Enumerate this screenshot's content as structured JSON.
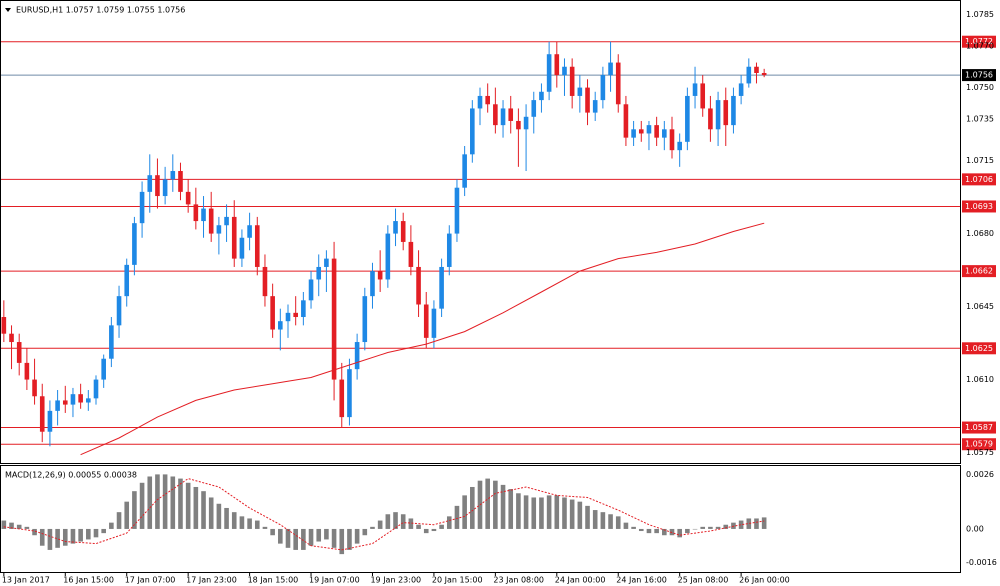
{
  "chart_data": [
    {
      "type": "candlestick",
      "header": "EURUSD,H1  1.0757 1.0759 1.0755 1.0756",
      "categories": [
        "13 Jan 2017",
        null,
        null,
        null,
        null,
        null,
        null,
        null,
        "16 Jan 15:00",
        null,
        null,
        null,
        null,
        null,
        null,
        null,
        "17 Jan 07:00",
        null,
        null,
        null,
        null,
        null,
        null,
        null,
        "17 Jan 23:00",
        null,
        null,
        null,
        null,
        null,
        null,
        null,
        "18 Jan 15:00",
        null,
        null,
        null,
        null,
        null,
        null,
        null,
        "19 Jan 07:00",
        null,
        null,
        null,
        null,
        null,
        null,
        null,
        "19 Jan 23:00",
        null,
        null,
        null,
        null,
        null,
        null,
        null,
        "20 Jan 15:00",
        null,
        null,
        null,
        null,
        null,
        null,
        null,
        "23 Jan 08:00",
        null,
        null,
        null,
        null,
        null,
        null,
        null,
        "24 Jan 00:00",
        null,
        null,
        null,
        null,
        null,
        null,
        null,
        "24 Jan 16:00",
        null,
        null,
        null,
        null,
        null,
        null,
        null,
        "25 Jan 08:00",
        null,
        null,
        null,
        null,
        null,
        null,
        null,
        "26 Jan 00:00",
        null,
        null,
        null
      ],
      "open": [
        1.064,
        1.0632,
        1.0628,
        1.0618,
        1.061,
        1.0602,
        1.0585,
        1.0595,
        1.06,
        1.0598,
        1.0603,
        1.0599,
        1.0601,
        1.061,
        1.062,
        1.0636,
        1.065,
        1.0665,
        1.0685,
        1.07,
        1.0708,
        1.0698,
        1.0706,
        1.071,
        1.07,
        1.0694,
        1.0686,
        1.0692,
        1.068,
        1.0684,
        1.0688,
        1.0668,
        1.0678,
        1.0684,
        1.0664,
        1.065,
        1.0634,
        1.0638,
        1.0642,
        1.064,
        1.0648,
        1.0658,
        1.0664,
        1.0668,
        1.061,
        1.0592,
        1.0615,
        1.0628,
        1.065,
        1.0662,
        1.0658,
        1.068,
        1.0686,
        1.0676,
        1.0664,
        1.0646,
        1.063,
        1.0644,
        1.0664,
        1.068,
        1.0702,
        1.0718,
        1.074,
        1.0746,
        1.0742,
        1.0732,
        1.074,
        1.0734,
        1.073,
        1.0736,
        1.0744,
        1.0748,
        1.0766,
        1.0756,
        1.076,
        1.0746,
        1.075,
        1.0738,
        1.0744,
        1.0756,
        1.0762,
        1.0742,
        1.0726,
        1.073,
        1.0728,
        1.0732,
        1.0726,
        1.073,
        1.072,
        1.0724,
        1.0746,
        1.0752,
        1.074,
        1.073,
        1.0744,
        1.0732,
        1.0746,
        1.0752,
        1.076,
        1.0757
      ],
      "high": [
        1.0648,
        1.0636,
        1.0632,
        1.0625,
        1.062,
        1.0608,
        1.06,
        1.0605,
        1.0607,
        1.0606,
        1.0608,
        1.0605,
        1.0612,
        1.0622,
        1.064,
        1.0655,
        1.0668,
        1.0688,
        1.0705,
        1.0718,
        1.0716,
        1.0712,
        1.0718,
        1.0714,
        1.0706,
        1.0702,
        1.0698,
        1.07,
        1.0688,
        1.0694,
        1.0696,
        1.0682,
        1.069,
        1.0688,
        1.067,
        1.0656,
        1.0644,
        1.0646,
        1.065,
        1.0652,
        1.0662,
        1.067,
        1.0672,
        1.0676,
        1.0618,
        1.062,
        1.0632,
        1.0654,
        1.0666,
        1.0672,
        1.0684,
        1.0692,
        1.069,
        1.0684,
        1.0672,
        1.0652,
        1.0648,
        1.0668,
        1.0684,
        1.0706,
        1.0722,
        1.0744,
        1.075,
        1.0752,
        1.075,
        1.0744,
        1.0746,
        1.074,
        1.0742,
        1.0748,
        1.0752,
        1.0772,
        1.0772,
        1.0764,
        1.0764,
        1.0756,
        1.0754,
        1.0748,
        1.076,
        1.0772,
        1.0766,
        1.0746,
        1.0734,
        1.0734,
        1.0734,
        1.0736,
        1.0734,
        1.0736,
        1.0728,
        1.075,
        1.076,
        1.0756,
        1.0746,
        1.0748,
        1.075,
        1.075,
        1.0756,
        1.0764,
        1.0762,
        1.0759
      ],
      "low": [
        1.0628,
        1.0615,
        1.0612,
        1.0605,
        1.0598,
        1.058,
        1.0578,
        1.0588,
        1.0594,
        1.0592,
        1.0596,
        1.0595,
        1.0598,
        1.0606,
        1.0616,
        1.063,
        1.0645,
        1.066,
        1.0678,
        1.069,
        1.0692,
        1.0694,
        1.07,
        1.0696,
        1.069,
        1.0682,
        1.0678,
        1.0676,
        1.067,
        1.0676,
        1.0664,
        1.0664,
        1.0672,
        1.066,
        1.0645,
        1.063,
        1.0624,
        1.063,
        1.0636,
        1.0636,
        1.0644,
        1.065,
        1.0652,
        1.06,
        1.0587,
        1.0588,
        1.061,
        1.0624,
        1.0644,
        1.0652,
        1.0654,
        1.0674,
        1.0672,
        1.066,
        1.064,
        1.0625,
        1.0625,
        1.064,
        1.066,
        1.0676,
        1.0698,
        1.0714,
        1.0732,
        1.0738,
        1.0728,
        1.0726,
        1.0728,
        1.0712,
        1.071,
        1.0728,
        1.0738,
        1.0744,
        1.075,
        1.0746,
        1.074,
        1.0738,
        1.0732,
        1.0734,
        1.074,
        1.0748,
        1.0738,
        1.0722,
        1.0722,
        1.0724,
        1.072,
        1.0722,
        1.072,
        1.0716,
        1.0712,
        1.072,
        1.074,
        1.0736,
        1.0724,
        1.0722,
        1.0722,
        1.0728,
        1.0742,
        1.075,
        1.0752,
        1.0755
      ],
      "close": [
        1.0632,
        1.0628,
        1.0618,
        1.061,
        1.0602,
        1.0585,
        1.0595,
        1.06,
        1.0598,
        1.0603,
        1.0599,
        1.0601,
        1.061,
        1.062,
        1.0636,
        1.065,
        1.0665,
        1.0685,
        1.07,
        1.0708,
        1.0698,
        1.0706,
        1.071,
        1.07,
        1.0694,
        1.0686,
        1.0692,
        1.068,
        1.0684,
        1.0688,
        1.0668,
        1.0678,
        1.0684,
        1.0664,
        1.065,
        1.0634,
        1.0638,
        1.0642,
        1.064,
        1.0648,
        1.0658,
        1.0664,
        1.0668,
        1.061,
        1.0592,
        1.0615,
        1.0628,
        1.065,
        1.0662,
        1.0658,
        1.068,
        1.0686,
        1.0676,
        1.0664,
        1.0646,
        1.063,
        1.0644,
        1.0664,
        1.068,
        1.0702,
        1.0718,
        1.074,
        1.0746,
        1.0742,
        1.0732,
        1.074,
        1.0734,
        1.073,
        1.0736,
        1.0744,
        1.0748,
        1.0766,
        1.0756,
        1.076,
        1.0746,
        1.075,
        1.0738,
        1.0744,
        1.0756,
        1.0762,
        1.0742,
        1.0726,
        1.073,
        1.0728,
        1.0732,
        1.0726,
        1.073,
        1.072,
        1.0724,
        1.0746,
        1.0752,
        1.074,
        1.073,
        1.0744,
        1.0732,
        1.0746,
        1.0752,
        1.076,
        1.0757,
        1.0756
      ],
      "up_color": "#1e88e5",
      "down_color": "#e31e24",
      "ma": {
        "color": "#e31e24",
        "x": [
          10,
          15,
          20,
          25,
          30,
          35,
          40,
          45,
          50,
          55,
          60,
          65,
          70,
          75,
          80,
          85,
          90,
          95,
          99
        ],
        "values": [
          1.0574,
          1.0582,
          1.0592,
          1.06,
          1.0605,
          1.0608,
          1.0611,
          1.0617,
          1.0623,
          1.0627,
          1.0633,
          1.0642,
          1.0652,
          1.0662,
          1.0668,
          1.0671,
          1.0675,
          1.0681,
          1.0685
        ]
      },
      "levels": [
        {
          "value": 1.0772,
          "label": "1.0772",
          "color": "#e31e24"
        },
        {
          "value": 1.0756,
          "label": "1.0756",
          "color": "#6f8aa6"
        },
        {
          "value": 1.0706,
          "label": "1.0706",
          "color": "#e31e24"
        },
        {
          "value": 1.0693,
          "label": "1.0693",
          "color": "#e31e24"
        },
        {
          "value": 1.0662,
          "label": "1.0662",
          "color": "#e31e24"
        },
        {
          "value": 1.0625,
          "label": "1.0625",
          "color": "#e31e24"
        },
        {
          "value": 1.0587,
          "label": "1.0587",
          "color": "#e31e24"
        },
        {
          "value": 1.0579,
          "label": "1.0579",
          "color": "#e31e24"
        }
      ],
      "xlim": [
        -0.5,
        124.5
      ],
      "vgrid": [
        0,
        12,
        24,
        36,
        48,
        60,
        72,
        84,
        96,
        108,
        120
      ],
      "ylim": [
        1.057,
        1.0792
      ],
      "yticks": [
        {
          "value": 1.0785,
          "label": "1.0785"
        },
        {
          "value": 1.077,
          "label": "1.0770"
        },
        {
          "value": 1.075,
          "label": "1.0750"
        },
        {
          "value": 1.0735,
          "label": "1.0735"
        },
        {
          "value": 1.0715,
          "label": "1.0715"
        },
        {
          "value": 1.068,
          "label": "1.0680"
        },
        {
          "value": 1.0645,
          "label": "1.0645"
        },
        {
          "value": 1.061,
          "label": "1.0610"
        },
        {
          "value": 1.0575,
          "label": "1.0575"
        }
      ]
    },
    {
      "type": "macd",
      "title": "MACD(12,26,9) 0.00055 0.00038",
      "color": "#808080",
      "values": [
        0.0004,
        0.0003,
        0.0002,
        0.0001,
        -0.0003,
        -0.0008,
        -0.001,
        -0.0009,
        -0.0008,
        -0.0007,
        -0.0006,
        -0.0005,
        -0.0004,
        -0.0002,
        0.0003,
        0.0008,
        0.0013,
        0.0018,
        0.0022,
        0.0025,
        0.0026,
        0.0026,
        0.0025,
        0.0024,
        0.0022,
        0.002,
        0.0018,
        0.0015,
        0.0012,
        0.001,
        0.0008,
        0.0006,
        0.0005,
        0.0004,
        0.0001,
        -0.0003,
        -0.0007,
        -0.0009,
        -0.001,
        -0.001,
        -0.0008,
        -0.0006,
        -0.0005,
        -0.0009,
        -0.0012,
        -0.001,
        -0.0007,
        -0.0003,
        0.0001,
        0.0004,
        0.0007,
        0.0008,
        0.0007,
        0.0005,
        0.0002,
        -0.0002,
        -0.0001,
        0.0002,
        0.0006,
        0.0011,
        0.0016,
        0.002,
        0.0023,
        0.0024,
        0.0023,
        0.0021,
        0.0019,
        0.0017,
        0.0016,
        0.0015,
        0.0015,
        0.0016,
        0.0016,
        0.0015,
        0.0014,
        0.0013,
        0.0011,
        0.0009,
        0.0008,
        0.0007,
        0.0006,
        0.0003,
        0.0001,
        -0.0001,
        -0.0002,
        -0.0002,
        -0.0003,
        -0.0003,
        -0.0004,
        -0.0002,
        0.0,
        0.0001,
        0.0001,
        0.0001,
        0.0002,
        0.0003,
        0.0004,
        0.0005,
        0.0005,
        0.00055
      ],
      "signal": {
        "color": "#e31e24",
        "x": [
          0,
          4,
          8,
          12,
          16,
          20,
          24,
          28,
          32,
          36,
          40,
          44,
          48,
          52,
          56,
          60,
          64,
          68,
          72,
          76,
          80,
          84,
          88,
          92,
          96,
          99
        ],
        "values": [
          0.0001,
          -0.0001,
          -0.0006,
          -0.0007,
          -0.0002,
          0.0014,
          0.0024,
          0.002,
          0.001,
          0.0002,
          -0.0008,
          -0.001,
          -0.0007,
          0.0003,
          0.0002,
          0.0006,
          0.0017,
          0.002,
          0.0016,
          0.0015,
          0.0009,
          0.0002,
          -0.0003,
          -0.0001,
          0.0002,
          0.00038
        ]
      },
      "ylim": [
        -0.0021,
        0.003
      ],
      "yticks": [
        0.0026,
        {
          "value": 0,
          "label": "0.00"
        },
        -0.0016
      ]
    }
  ]
}
